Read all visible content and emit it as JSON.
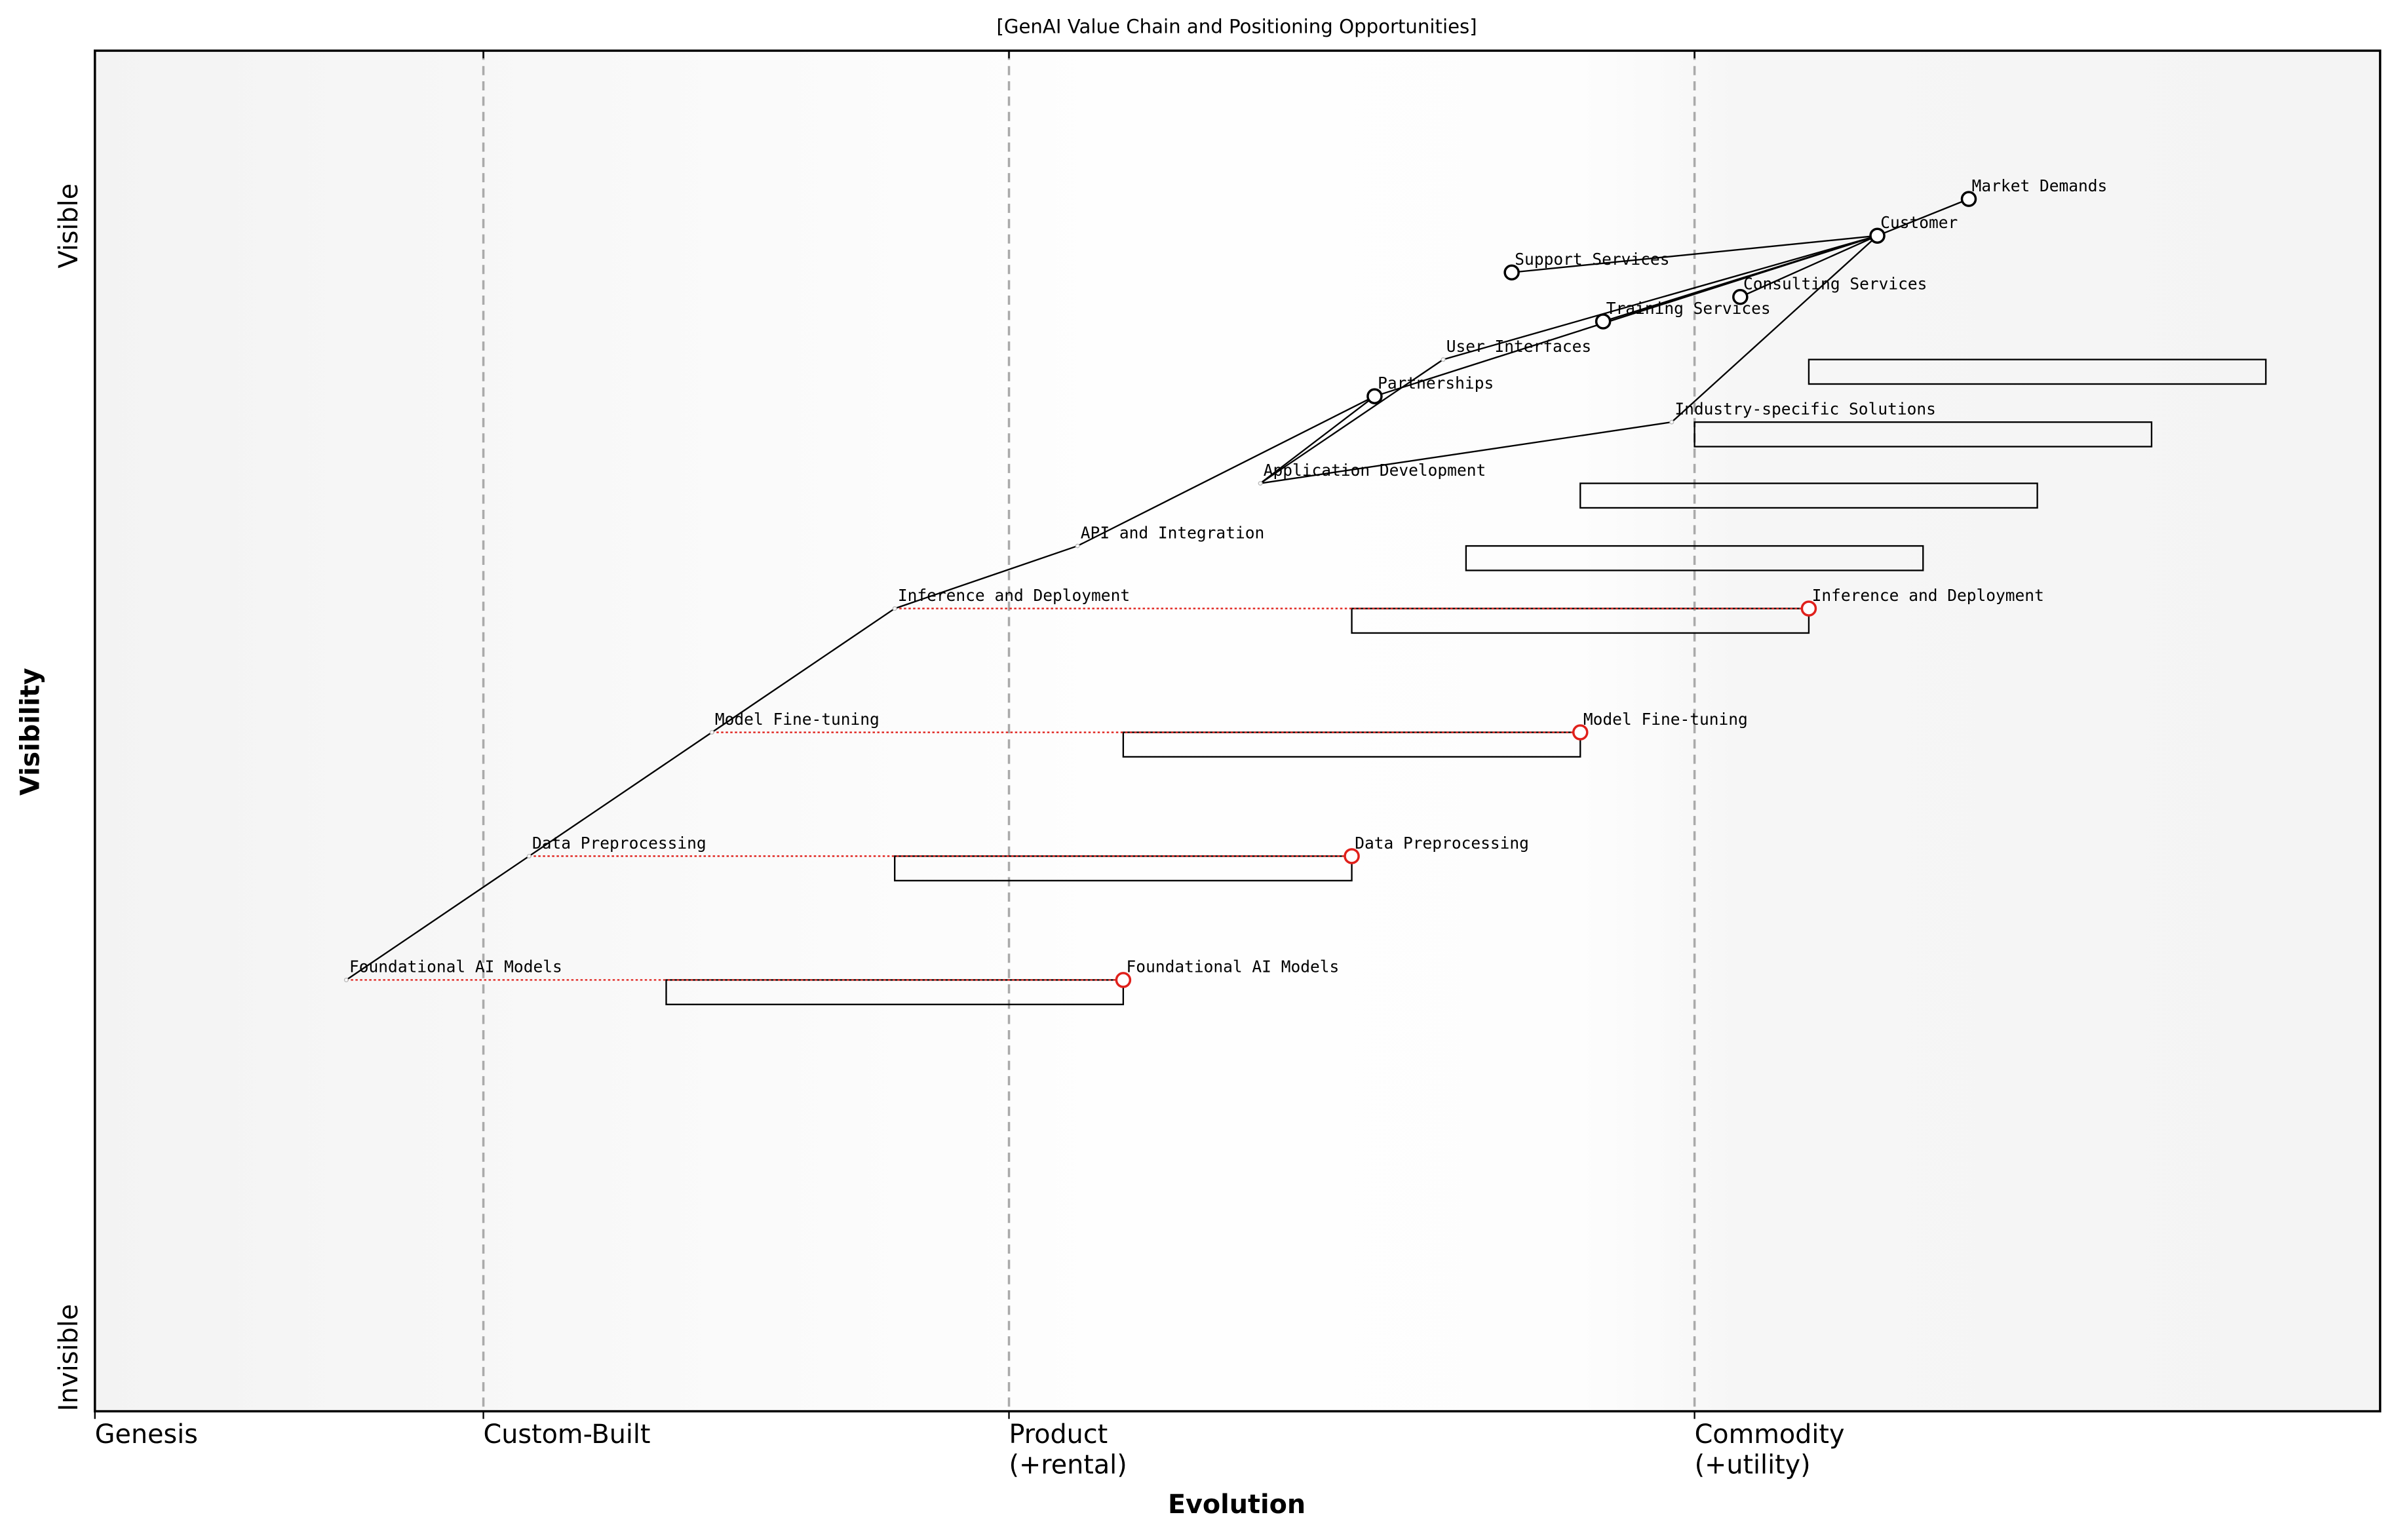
{
  "chart_data": {
    "type": "wardley",
    "title": "[GenAI Value Chain and Positioning Opportunities]",
    "x_label": "Evolution",
    "y_label": "Visibility",
    "xlim": [
      0,
      1
    ],
    "ylim": [
      0,
      1
    ],
    "xticks": [
      {
        "value": 0,
        "label": "Genesis"
      },
      {
        "value": 0.17,
        "label": "Custom-Built"
      },
      {
        "value": 0.4,
        "label": "Product\n(+rental)"
      },
      {
        "value": 0.7,
        "label": "Commodity\n(+utility)"
      }
    ],
    "y_top_label": "Visible",
    "y_bottom_label": "Invisible",
    "components": [
      {
        "name": "Foundational AI Models",
        "evolution": 0.11,
        "visibility": 0.317,
        "marker": "none"
      },
      {
        "name": "Data Preprocessing",
        "evolution": 0.19,
        "visibility": 0.408,
        "marker": "none"
      },
      {
        "name": "Model Fine-tuning",
        "evolution": 0.27,
        "visibility": 0.499,
        "marker": "none"
      },
      {
        "name": "Inference and Deployment",
        "evolution": 0.35,
        "visibility": 0.59,
        "marker": "none"
      },
      {
        "name": "API and Integration",
        "evolution": 0.43,
        "visibility": 0.636,
        "marker": "none"
      },
      {
        "name": "Application Development",
        "evolution": 0.51,
        "visibility": 0.682,
        "marker": "none"
      },
      {
        "name": "Partnerships",
        "evolution": 0.56,
        "visibility": 0.746,
        "marker": "circle"
      },
      {
        "name": "User Interfaces",
        "evolution": 0.59,
        "visibility": 0.773,
        "marker": "none"
      },
      {
        "name": "Industry-specific Solutions",
        "evolution": 0.69,
        "visibility": 0.727,
        "marker": "none"
      },
      {
        "name": "Support Services",
        "evolution": 0.62,
        "visibility": 0.837,
        "marker": "circle"
      },
      {
        "name": "Training Services",
        "evolution": 0.66,
        "visibility": 0.801,
        "marker": "circle"
      },
      {
        "name": "Consulting Services",
        "evolution": 0.72,
        "visibility": 0.819,
        "marker": "circle"
      },
      {
        "name": "Customer",
        "evolution": 0.78,
        "visibility": 0.864,
        "marker": "circle"
      },
      {
        "name": "Market Demands",
        "evolution": 0.82,
        "visibility": 0.891,
        "marker": "circle"
      }
    ],
    "links": [
      [
        0,
        1
      ],
      [
        1,
        2
      ],
      [
        2,
        3
      ],
      [
        3,
        4
      ],
      [
        4,
        6
      ],
      [
        5,
        6
      ],
      [
        5,
        7
      ],
      [
        5,
        8
      ],
      [
        12,
        9
      ],
      [
        12,
        10
      ],
      [
        12,
        11
      ],
      [
        12,
        8
      ],
      [
        12,
        13
      ],
      [
        12,
        6
      ],
      [
        12,
        7
      ]
    ],
    "evolutions": [
      {
        "component": 0,
        "to": 0.45,
        "label": "Foundational AI Models"
      },
      {
        "component": 1,
        "to": 0.55,
        "label": "Data Preprocessing"
      },
      {
        "component": 2,
        "to": 0.65,
        "label": "Model Fine-tuning"
      },
      {
        "component": 3,
        "to": 0.75,
        "label": "Inference and Deployment"
      }
    ],
    "evolution_color": "#e0201b",
    "pipelines": [
      {
        "start": 0.25,
        "end": 0.45,
        "visibility": 0.317
      },
      {
        "start": 0.35,
        "end": 0.55,
        "visibility": 0.408
      },
      {
        "start": 0.45,
        "end": 0.65,
        "visibility": 0.499
      },
      {
        "start": 0.55,
        "end": 0.75,
        "visibility": 0.59
      },
      {
        "start": 0.6,
        "end": 0.8,
        "visibility": 0.636
      },
      {
        "start": 0.65,
        "end": 0.85,
        "visibility": 0.682
      },
      {
        "start": 0.7,
        "end": 0.9,
        "visibility": 0.727
      },
      {
        "start": 0.75,
        "end": 0.95,
        "visibility": 0.773
      }
    ]
  }
}
